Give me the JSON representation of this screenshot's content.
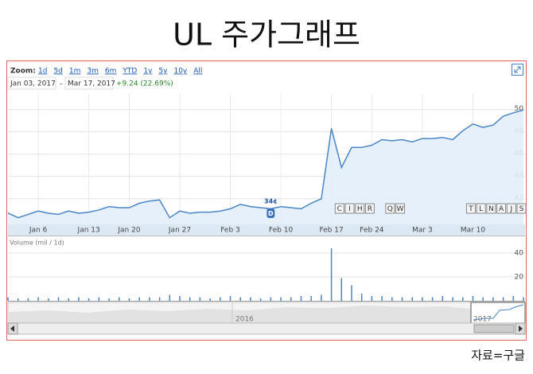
{
  "title": "UL 주가그래프",
  "toolbar": {
    "zoom_label": "Zoom:",
    "zoom_options": [
      "1d",
      "5d",
      "1m",
      "3m",
      "6m",
      "YTD",
      "1y",
      "5y",
      "10y",
      "All"
    ],
    "date_from": "Jan 03, 2017",
    "date_sep": "-",
    "date_to": "Mar 17, 2017",
    "change": "+9.24 (22.69%)"
  },
  "chart_data": [
    {
      "type": "line",
      "color": "#4a86c5",
      "grid": true,
      "categories": [
        null,
        null,
        null,
        "Jan 6",
        null,
        null,
        null,
        null,
        "Jan 13",
        null,
        null,
        null,
        "Jan 20",
        null,
        null,
        null,
        null,
        "Jan 27",
        null,
        null,
        null,
        null,
        "Feb 3",
        null,
        null,
        null,
        null,
        "Feb 10",
        null,
        null,
        null,
        null,
        "Feb 17",
        null,
        null,
        null,
        "Feb 24",
        null,
        null,
        null,
        null,
        "Mar 3",
        null,
        null,
        null,
        null,
        "Mar 10",
        null,
        null,
        null,
        null,
        null
      ],
      "values": [
        40.72,
        40.3,
        40.6,
        40.9,
        40.7,
        40.6,
        40.9,
        40.7,
        40.8,
        41.0,
        41.3,
        41.2,
        41.2,
        41.6,
        41.8,
        41.9,
        40.3,
        40.9,
        40.7,
        40.8,
        40.8,
        40.9,
        41.1,
        41.5,
        41.3,
        41.2,
        41.1,
        41.3,
        41.2,
        41.1,
        41.6,
        42.0,
        48.3,
        44.8,
        46.6,
        46.6,
        46.8,
        47.3,
        47.2,
        47.3,
        47.1,
        47.4,
        47.4,
        47.5,
        47.3,
        48.1,
        48.7,
        48.4,
        48.6,
        49.4,
        49.7,
        49.96
      ],
      "ylim": [
        39.7,
        51.4
      ],
      "yticks": [
        42,
        44,
        46,
        48,
        50
      ],
      "dividend": {
        "label": "34¢",
        "flag": "D"
      },
      "annotations": [
        "C",
        "I",
        "H",
        "R",
        "Q",
        "W",
        "T",
        "L",
        "N",
        "A",
        "J",
        "S"
      ]
    },
    {
      "type": "bar",
      "title": "Volume (mil / 1d)",
      "color": "#4a86c5",
      "values": [
        3,
        2,
        2,
        3,
        2,
        3,
        2,
        3,
        2,
        3,
        2,
        3,
        2,
        3,
        3,
        3,
        5,
        4,
        3,
        3,
        2,
        3,
        4,
        3,
        3,
        2,
        3,
        3,
        3,
        4,
        4,
        5,
        44,
        19,
        13,
        6,
        4,
        4,
        3,
        3,
        3,
        3,
        3,
        4,
        3,
        3,
        4,
        3,
        3,
        3,
        4,
        3
      ],
      "ylim": [
        0,
        44
      ],
      "yticks": [
        20,
        40
      ]
    }
  ],
  "navigator": {
    "labels": [
      "2016",
      "2017"
    ]
  },
  "source": "자료=구글"
}
